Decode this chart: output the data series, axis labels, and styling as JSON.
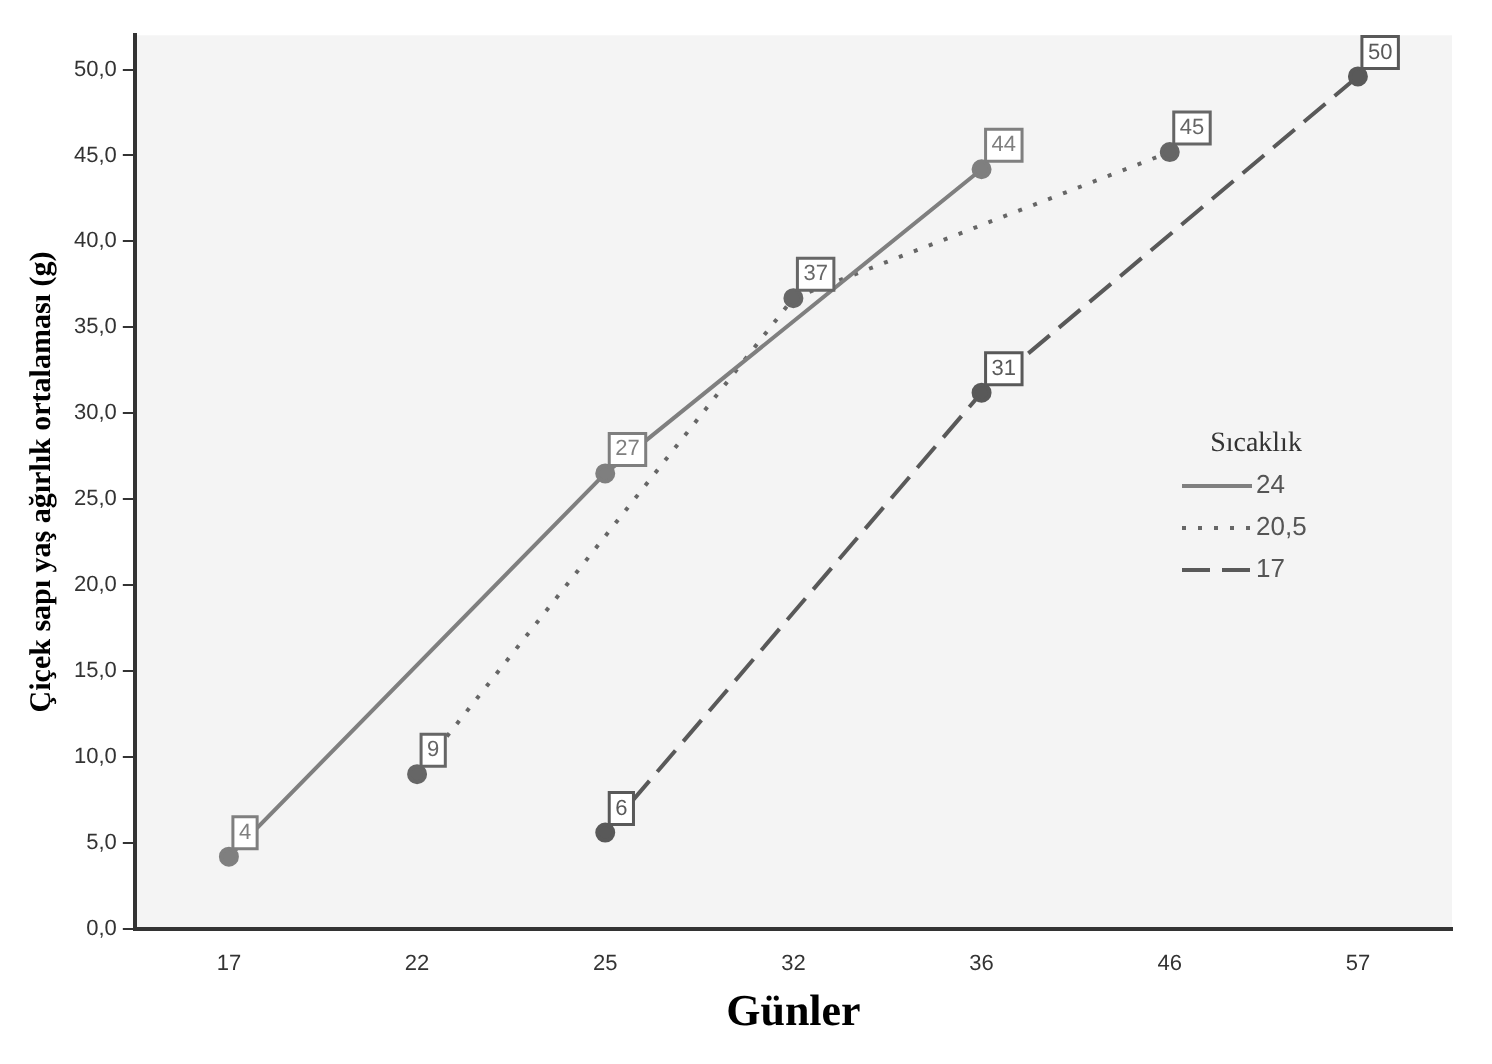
{
  "chart_data": {
    "type": "line",
    "xlabel": "Günler",
    "ylabel": "Çiçek sapı yaş ağırlık ortalaması (g)",
    "legend_title": "Sıcaklık",
    "legend": "right",
    "marker": "circle",
    "grid": false,
    "categories": [
      "17",
      "22",
      "25",
      "32",
      "36",
      "46",
      "57"
    ],
    "ylim": [
      0,
      52
    ],
    "yticks": [
      {
        "value": 0,
        "label": "0,0"
      },
      {
        "value": 5,
        "label": "5,0"
      },
      {
        "value": 10,
        "label": "10,0"
      },
      {
        "value": 15,
        "label": "15,0"
      },
      {
        "value": 20,
        "label": "20,0"
      },
      {
        "value": 25,
        "label": "25,0"
      },
      {
        "value": 30,
        "label": "30,0"
      },
      {
        "value": 35,
        "label": "35,0"
      },
      {
        "value": 40,
        "label": "40,0"
      },
      {
        "value": 45,
        "label": "45,0"
      },
      {
        "value": 50,
        "label": "50,0"
      }
    ],
    "series": [
      {
        "name": "24",
        "color": "#7f7f7f",
        "line_style": "solid",
        "values": [
          4.2,
          null,
          26.5,
          null,
          44.2,
          null,
          null
        ],
        "value_labels": [
          "4",
          null,
          "27",
          null,
          "44",
          null,
          null
        ]
      },
      {
        "name": "20,5",
        "color": "#666666",
        "line_style": "dotted",
        "values": [
          null,
          9.0,
          null,
          36.7,
          null,
          45.2,
          null
        ],
        "value_labels": [
          null,
          "9",
          null,
          "37",
          null,
          "45",
          null
        ]
      },
      {
        "name": "17",
        "color": "#595959",
        "line_style": "dashed",
        "values": [
          null,
          null,
          5.6,
          null,
          31.2,
          null,
          49.6
        ],
        "value_labels": [
          null,
          null,
          "6",
          null,
          "31",
          null,
          "50"
        ]
      }
    ]
  }
}
